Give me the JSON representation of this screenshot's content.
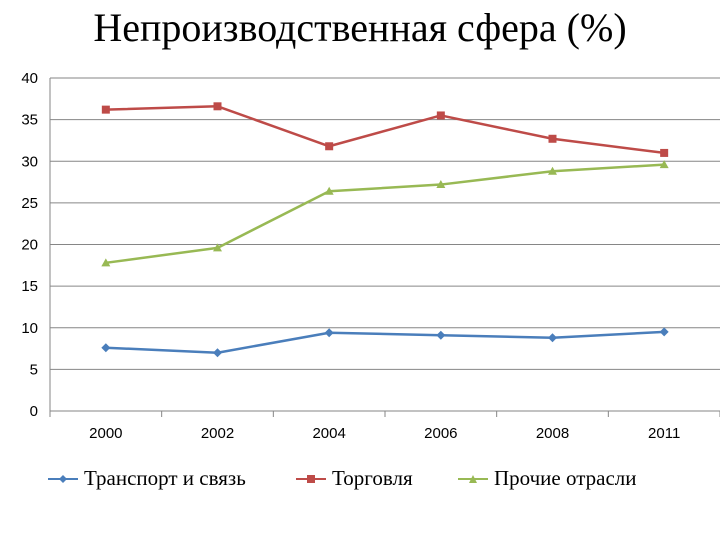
{
  "chart_data": {
    "type": "line",
    "title": "Непроизводственная сфера (%)",
    "categories": [
      "2000",
      "2002",
      "2004",
      "2006",
      "2008",
      "2011"
    ],
    "ylim": [
      0,
      40
    ],
    "yticks": [
      "0",
      "5",
      "10",
      "15",
      "20",
      "25",
      "30",
      "35",
      "40"
    ],
    "grid": true,
    "legend_position": "bottom",
    "series": [
      {
        "name": "Транспорт и связь",
        "color": "#4A7EBB",
        "marker": "diamond",
        "values": [
          7.6,
          7.0,
          9.4,
          9.1,
          8.8,
          9.5
        ]
      },
      {
        "name": "Торговля",
        "color": "#BE4B48",
        "marker": "square",
        "values": [
          36.2,
          36.6,
          31.8,
          35.5,
          32.7,
          31.0
        ]
      },
      {
        "name": "Прочие отрасли",
        "color": "#98B954",
        "marker": "triangle",
        "values": [
          17.8,
          19.6,
          26.4,
          27.2,
          28.8,
          29.6
        ]
      }
    ]
  }
}
